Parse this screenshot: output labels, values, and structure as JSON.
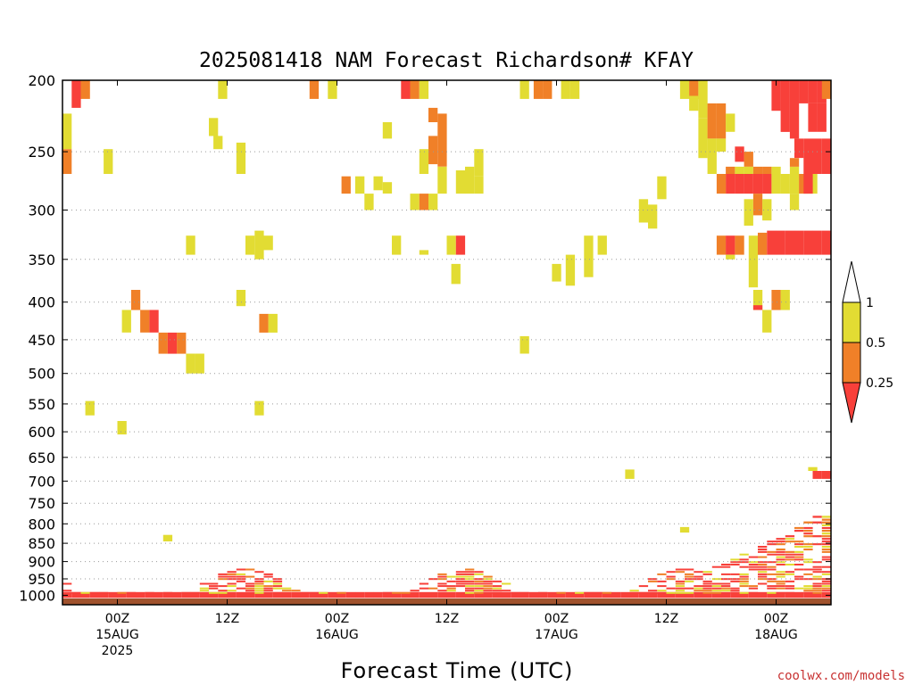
{
  "title": "2025081418 NAM Forecast Richardson# KFAY",
  "credit": "coolwx.com/models",
  "colors": {
    "red": "#f8403a",
    "orange": "#f08028",
    "yellow": "#e2dc33",
    "ground": "#a0522d",
    "credit": "#c83232"
  },
  "chart_data": {
    "type": "heatmap",
    "title": "2025081418 NAM Forecast Richardson# KFAY",
    "xlabel": "Forecast Time (UTC)",
    "ylabel": "",
    "xlim_hours_from_init": [
      0,
      84
    ],
    "ylim_pressure_hPa": [
      1030,
      200
    ],
    "y_scale": "log",
    "grid": "dotted horizontal at each pressure tick",
    "y_ticks": [
      {
        "p": 200,
        "label": "200"
      },
      {
        "p": 250,
        "label": "250"
      },
      {
        "p": 300,
        "label": "300"
      },
      {
        "p": 350,
        "label": "350"
      },
      {
        "p": 400,
        "label": "400"
      },
      {
        "p": 450,
        "label": "450"
      },
      {
        "p": 500,
        "label": "500"
      },
      {
        "p": 550,
        "label": "550"
      },
      {
        "p": 600,
        "label": "600"
      },
      {
        "p": 650,
        "label": "650"
      },
      {
        "p": 700,
        "label": "700"
      },
      {
        "p": 750,
        "label": "750"
      },
      {
        "p": 800,
        "label": "800"
      },
      {
        "p": 850,
        "label": "850"
      },
      {
        "p": 900,
        "label": "900"
      },
      {
        "p": 950,
        "label": "950"
      },
      {
        "p": 1000,
        "label": "1000"
      }
    ],
    "x_ticks": [
      {
        "t": 6,
        "lines": [
          "00Z",
          "15AUG",
          "2025"
        ]
      },
      {
        "t": 18,
        "lines": [
          "12Z"
        ]
      },
      {
        "t": 30,
        "lines": [
          "00Z",
          "16AUG"
        ]
      },
      {
        "t": 42,
        "lines": [
          "12Z"
        ]
      },
      {
        "t": 54,
        "lines": [
          "00Z",
          "17AUG"
        ]
      },
      {
        "t": 66,
        "lines": [
          "12Z"
        ]
      },
      {
        "t": 78,
        "lines": [
          "00Z",
          "18AUG"
        ]
      }
    ],
    "legend": {
      "placement": "right",
      "levels": [
        "1",
        "0.5",
        "0.25"
      ],
      "bins": [
        {
          "range": "> 1",
          "color": "#ffffff"
        },
        {
          "range": "0.5 - 1",
          "color": "#e2dc33"
        },
        {
          "range": "0.25 - 0.5",
          "color": "#f08028"
        },
        {
          "range": "< 0.25",
          "color": "#f8403a"
        }
      ]
    },
    "ground_below_hPa": 1010,
    "cells": [
      {
        "t": 1.5,
        "p0": 200,
        "p1": 218,
        "c": "red"
      },
      {
        "t": 2.5,
        "p0": 200,
        "p1": 212,
        "c": "orange"
      },
      {
        "t": 0.5,
        "p0": 222,
        "p1": 248,
        "c": "yellow"
      },
      {
        "t": 0.5,
        "p0": 248,
        "p1": 268,
        "c": "orange"
      },
      {
        "t": 5,
        "p0": 248,
        "p1": 268,
        "c": "yellow"
      },
      {
        "t": 17.5,
        "p0": 200,
        "p1": 212,
        "c": "yellow"
      },
      {
        "t": 16.5,
        "p0": 225,
        "p1": 238,
        "c": "yellow"
      },
      {
        "t": 17,
        "p0": 238,
        "p1": 248,
        "c": "yellow"
      },
      {
        "t": 19.5,
        "p0": 243,
        "p1": 268,
        "c": "yellow"
      },
      {
        "t": 27.5,
        "p0": 200,
        "p1": 212,
        "c": "orange"
      },
      {
        "t": 29.5,
        "p0": 200,
        "p1": 212,
        "c": "yellow"
      },
      {
        "t": 37.5,
        "p0": 200,
        "p1": 212,
        "c": "red"
      },
      {
        "t": 38.5,
        "p0": 200,
        "p1": 212,
        "c": "orange"
      },
      {
        "t": 39.5,
        "p0": 200,
        "p1": 212,
        "c": "yellow"
      },
      {
        "t": 40.5,
        "p0": 218,
        "p1": 228,
        "c": "orange"
      },
      {
        "t": 41.5,
        "p0": 222,
        "p1": 262,
        "c": "orange"
      },
      {
        "t": 40.5,
        "p0": 238,
        "p1": 260,
        "c": "orange"
      },
      {
        "t": 39.5,
        "p0": 248,
        "p1": 268,
        "c": "yellow"
      },
      {
        "t": 35.5,
        "p0": 228,
        "p1": 240,
        "c": "yellow"
      },
      {
        "t": 41.5,
        "p0": 262,
        "p1": 285,
        "c": "yellow"
      },
      {
        "t": 43.5,
        "p0": 265,
        "p1": 285,
        "c": "yellow"
      },
      {
        "t": 44.5,
        "p0": 262,
        "p1": 285,
        "c": "yellow"
      },
      {
        "t": 45.5,
        "p0": 248,
        "p1": 270,
        "c": "yellow"
      },
      {
        "t": 45.5,
        "p0": 270,
        "p1": 285,
        "c": "yellow"
      },
      {
        "t": 31,
        "p0": 270,
        "p1": 285,
        "c": "orange"
      },
      {
        "t": 32.5,
        "p0": 270,
        "p1": 285,
        "c": "yellow"
      },
      {
        "t": 33.5,
        "p0": 285,
        "p1": 300,
        "c": "yellow"
      },
      {
        "t": 34.5,
        "p0": 270,
        "p1": 282,
        "c": "yellow"
      },
      {
        "t": 35.5,
        "p0": 275,
        "p1": 285,
        "c": "yellow"
      },
      {
        "t": 38.5,
        "p0": 285,
        "p1": 300,
        "c": "yellow"
      },
      {
        "t": 39.5,
        "p0": 285,
        "p1": 300,
        "c": "orange"
      },
      {
        "t": 40.5,
        "p0": 285,
        "p1": 300,
        "c": "yellow"
      },
      {
        "t": 36.5,
        "p0": 325,
        "p1": 345,
        "c": "yellow"
      },
      {
        "t": 39.5,
        "p0": 340,
        "p1": 345,
        "c": "yellow"
      },
      {
        "t": 42.5,
        "p0": 325,
        "p1": 345,
        "c": "yellow"
      },
      {
        "t": 43.5,
        "p0": 325,
        "p1": 345,
        "c": "red"
      },
      {
        "t": 43,
        "p0": 355,
        "p1": 378,
        "c": "yellow"
      },
      {
        "t": 14,
        "p0": 325,
        "p1": 345,
        "c": "yellow"
      },
      {
        "t": 20.5,
        "p0": 325,
        "p1": 345,
        "c": "yellow"
      },
      {
        "t": 21.5,
        "p0": 320,
        "p1": 350,
        "c": "yellow"
      },
      {
        "t": 22.5,
        "p0": 325,
        "p1": 340,
        "c": "yellow"
      },
      {
        "t": 19.5,
        "p0": 385,
        "p1": 405,
        "c": "yellow"
      },
      {
        "t": 8,
        "p0": 385,
        "p1": 410,
        "c": "orange"
      },
      {
        "t": 7,
        "p0": 410,
        "p1": 440,
        "c": "yellow"
      },
      {
        "t": 9,
        "p0": 410,
        "p1": 440,
        "c": "orange"
      },
      {
        "t": 10,
        "p0": 410,
        "p1": 440,
        "c": "red"
      },
      {
        "t": 11,
        "p0": 440,
        "p1": 470,
        "c": "orange"
      },
      {
        "t": 12,
        "p0": 440,
        "p1": 470,
        "c": "red"
      },
      {
        "t": 13,
        "p0": 440,
        "p1": 470,
        "c": "orange"
      },
      {
        "t": 14,
        "p0": 470,
        "p1": 500,
        "c": "yellow"
      },
      {
        "t": 15,
        "p0": 470,
        "p1": 500,
        "c": "yellow"
      },
      {
        "t": 22,
        "p0": 415,
        "p1": 440,
        "c": "orange"
      },
      {
        "t": 23,
        "p0": 415,
        "p1": 440,
        "c": "yellow"
      },
      {
        "t": 3,
        "p0": 545,
        "p1": 570,
        "c": "yellow"
      },
      {
        "t": 6.5,
        "p0": 580,
        "p1": 605,
        "c": "yellow"
      },
      {
        "t": 21.5,
        "p0": 545,
        "p1": 570,
        "c": "yellow"
      },
      {
        "t": 50.5,
        "p0": 200,
        "p1": 212,
        "c": "yellow"
      },
      {
        "t": 52,
        "p0": 200,
        "p1": 212,
        "c": "orange"
      },
      {
        "t": 53,
        "p0": 200,
        "p1": 212,
        "c": "orange"
      },
      {
        "t": 55,
        "p0": 200,
        "p1": 212,
        "c": "yellow"
      },
      {
        "t": 56,
        "p0": 200,
        "p1": 212,
        "c": "yellow"
      },
      {
        "t": 54,
        "p0": 355,
        "p1": 375,
        "c": "yellow"
      },
      {
        "t": 55.5,
        "p0": 345,
        "p1": 380,
        "c": "yellow"
      },
      {
        "t": 57.5,
        "p0": 325,
        "p1": 370,
        "c": "yellow"
      },
      {
        "t": 59,
        "p0": 325,
        "p1": 345,
        "c": "yellow"
      },
      {
        "t": 50.5,
        "p0": 445,
        "p1": 470,
        "c": "yellow"
      },
      {
        "t": 63.5,
        "p0": 290,
        "p1": 312,
        "c": "yellow"
      },
      {
        "t": 64.5,
        "p0": 295,
        "p1": 318,
        "c": "yellow"
      },
      {
        "t": 65.5,
        "p0": 270,
        "p1": 290,
        "c": "yellow"
      },
      {
        "t": 68,
        "p0": 200,
        "p1": 212,
        "c": "yellow"
      },
      {
        "t": 69,
        "p0": 200,
        "p1": 212,
        "c": "orange"
      },
      {
        "t": 70,
        "p0": 200,
        "p1": 225,
        "c": "yellow"
      },
      {
        "t": 69,
        "p0": 210,
        "p1": 220,
        "c": "yellow"
      },
      {
        "t": 70,
        "p0": 225,
        "p1": 255,
        "c": "yellow"
      },
      {
        "t": 71,
        "p0": 215,
        "p1": 240,
        "c": "orange"
      },
      {
        "t": 72,
        "p0": 215,
        "p1": 240,
        "c": "orange"
      },
      {
        "t": 73,
        "p0": 222,
        "p1": 235,
        "c": "yellow"
      },
      {
        "t": 72,
        "p0": 240,
        "p1": 250,
        "c": "yellow"
      },
      {
        "t": 71,
        "p0": 240,
        "p1": 268,
        "c": "yellow"
      },
      {
        "t": 74,
        "p0": 246,
        "p1": 258,
        "c": "red"
      },
      {
        "t": 75,
        "p0": 250,
        "p1": 262,
        "c": "orange"
      },
      {
        "t": 73,
        "p0": 262,
        "p1": 268,
        "c": "orange"
      },
      {
        "t": 74,
        "p0": 262,
        "p1": 268,
        "c": "yellow"
      },
      {
        "t": 75,
        "p0": 262,
        "p1": 268,
        "c": "yellow"
      },
      {
        "t": 76,
        "p0": 262,
        "p1": 268,
        "c": "orange"
      },
      {
        "t": 77,
        "p0": 262,
        "p1": 268,
        "c": "orange"
      },
      {
        "t": 78,
        "p0": 262,
        "p1": 268,
        "c": "yellow"
      },
      {
        "t": 73,
        "p0": 268,
        "p1": 285,
        "c": "red"
      },
      {
        "t": 74,
        "p0": 268,
        "p1": 285,
        "c": "red"
      },
      {
        "t": 75,
        "p0": 268,
        "p1": 285,
        "c": "red"
      },
      {
        "t": 76,
        "p0": 268,
        "p1": 285,
        "c": "red"
      },
      {
        "t": 77,
        "p0": 268,
        "p1": 285,
        "c": "red"
      },
      {
        "t": 72,
        "p0": 268,
        "p1": 285,
        "c": "orange"
      },
      {
        "t": 78,
        "p0": 268,
        "p1": 285,
        "c": "yellow"
      },
      {
        "t": 79,
        "p0": 268,
        "p1": 285,
        "c": "yellow"
      },
      {
        "t": 80,
        "p0": 262,
        "p1": 285,
        "c": "yellow"
      },
      {
        "t": 81,
        "p0": 268,
        "p1": 285,
        "c": "orange"
      },
      {
        "t": 82,
        "p0": 262,
        "p1": 285,
        "c": "yellow"
      },
      {
        "t": 80,
        "p0": 285,
        "p1": 300,
        "c": "yellow"
      },
      {
        "t": 75,
        "p0": 290,
        "p1": 315,
        "c": "yellow"
      },
      {
        "t": 76,
        "p0": 285,
        "p1": 305,
        "c": "orange"
      },
      {
        "t": 77,
        "p0": 290,
        "p1": 310,
        "c": "yellow"
      },
      {
        "t": 72,
        "p0": 325,
        "p1": 345,
        "c": "orange"
      },
      {
        "t": 73,
        "p0": 325,
        "p1": 345,
        "c": "red"
      },
      {
        "t": 74,
        "p0": 325,
        "p1": 345,
        "c": "orange"
      },
      {
        "t": 73,
        "p0": 345,
        "p1": 350,
        "c": "yellow"
      },
      {
        "t": 75.5,
        "p0": 325,
        "p1": 382,
        "c": "yellow"
      },
      {
        "t": 76.5,
        "p0": 322,
        "p1": 345,
        "c": "orange"
      },
      {
        "t": 77.5,
        "p0": 320,
        "p1": 345,
        "c": "red"
      },
      {
        "t": 78.5,
        "p0": 320,
        "p1": 345,
        "c": "red"
      },
      {
        "t": 79.5,
        "p0": 320,
        "p1": 345,
        "c": "red"
      },
      {
        "t": 80.5,
        "p0": 320,
        "p1": 345,
        "c": "red"
      },
      {
        "t": 81.5,
        "p0": 320,
        "p1": 345,
        "c": "red"
      },
      {
        "t": 82.5,
        "p0": 320,
        "p1": 345,
        "c": "red"
      },
      {
        "t": 83.5,
        "p0": 320,
        "p1": 345,
        "c": "red"
      },
      {
        "t": 76,
        "p0": 385,
        "p1": 410,
        "c": "yellow"
      },
      {
        "t": 78,
        "p0": 385,
        "p1": 410,
        "c": "orange"
      },
      {
        "t": 79,
        "p0": 385,
        "p1": 410,
        "c": "yellow"
      },
      {
        "t": 77,
        "p0": 410,
        "p1": 440,
        "c": "yellow"
      },
      {
        "t": 76,
        "p0": 404,
        "p1": 410,
        "c": "red"
      },
      {
        "t": 78,
        "p0": 200,
        "p1": 220,
        "c": "red"
      },
      {
        "t": 79,
        "p0": 200,
        "p1": 235,
        "c": "red"
      },
      {
        "t": 80,
        "p0": 200,
        "p1": 240,
        "c": "red"
      },
      {
        "t": 81,
        "p0": 200,
        "p1": 215,
        "c": "red"
      },
      {
        "t": 82,
        "p0": 200,
        "p1": 215,
        "c": "red"
      },
      {
        "t": 83,
        "p0": 200,
        "p1": 215,
        "c": "red"
      },
      {
        "t": 83.5,
        "p0": 200,
        "p1": 212,
        "c": "orange"
      },
      {
        "t": 82,
        "p0": 215,
        "p1": 235,
        "c": "red"
      },
      {
        "t": 83,
        "p0": 215,
        "p1": 235,
        "c": "red"
      },
      {
        "t": 80.5,
        "p0": 240,
        "p1": 255,
        "c": "red"
      },
      {
        "t": 81.5,
        "p0": 240,
        "p1": 268,
        "c": "red"
      },
      {
        "t": 82.5,
        "p0": 240,
        "p1": 268,
        "c": "red"
      },
      {
        "t": 83.5,
        "p0": 240,
        "p1": 268,
        "c": "red"
      },
      {
        "t": 80,
        "p0": 255,
        "p1": 262,
        "c": "orange"
      },
      {
        "t": 81.5,
        "p0": 268,
        "p1": 285,
        "c": "red"
      },
      {
        "t": 62,
        "p0": 675,
        "p1": 695,
        "c": "yellow"
      },
      {
        "t": 82,
        "p0": 670,
        "p1": 678,
        "c": "yellow"
      },
      {
        "t": 82.5,
        "p0": 678,
        "p1": 695,
        "c": "red"
      },
      {
        "t": 83.5,
        "p0": 678,
        "p1": 695,
        "c": "red"
      },
      {
        "t": 11.5,
        "p0": 828,
        "p1": 845,
        "c": "yellow"
      },
      {
        "t": 68,
        "p0": 808,
        "p1": 822,
        "c": "yellow"
      }
    ]
  }
}
